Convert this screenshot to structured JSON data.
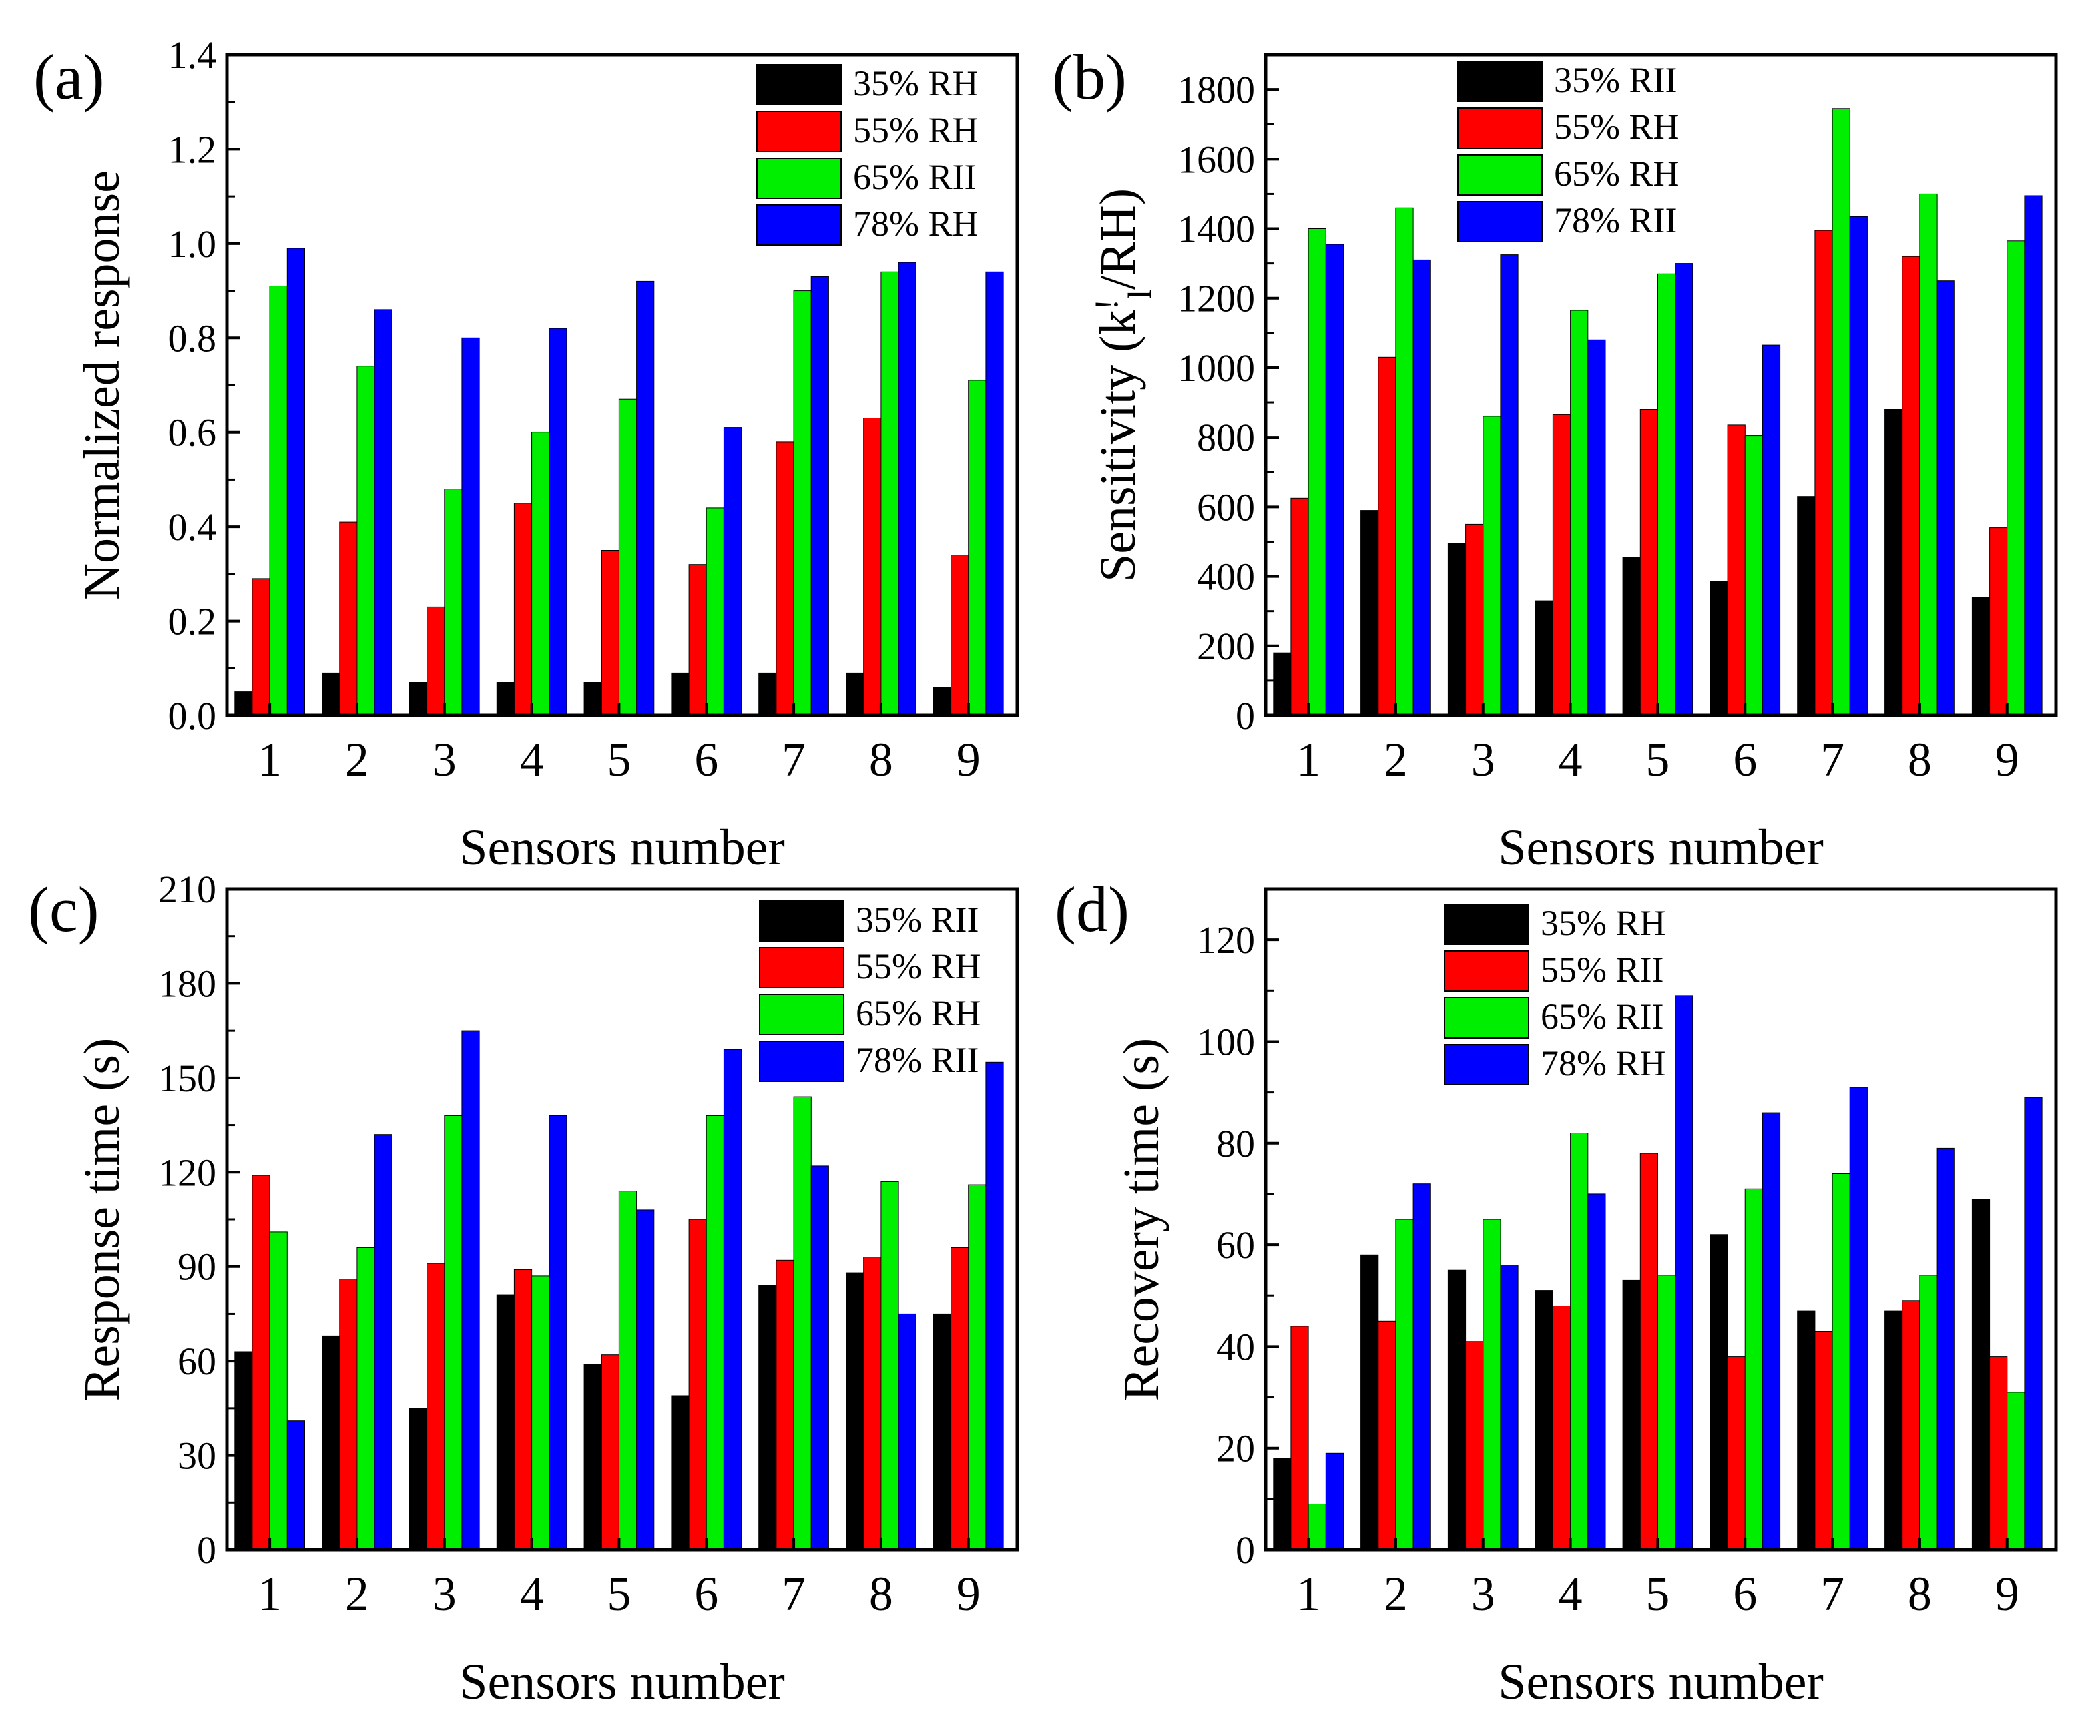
{
  "colors": {
    "s35": "#000000",
    "s55": "#ff0000",
    "s65": "#00ee00",
    "s78": "#0000ff",
    "axis": "#000000"
  },
  "chart_data": [
    {
      "type": "bar",
      "panel_label": "(a)",
      "xlabel": "Sensors number",
      "ylabel": "Normalized response",
      "ylim": [
        0,
        1.4
      ],
      "yticks": [
        "0.0",
        "0.2",
        "0.4",
        "0.6",
        "0.8",
        "1.0",
        "1.2",
        "1.4"
      ],
      "categories": [
        "1",
        "2",
        "3",
        "4",
        "5",
        "6",
        "7",
        "8",
        "9"
      ],
      "legend_position": "top-right",
      "series": [
        {
          "name": "35% RH",
          "values": [
            0.05,
            0.09,
            0.07,
            0.07,
            0.07,
            0.09,
            0.09,
            0.09,
            0.06
          ]
        },
        {
          "name": "55% RH",
          "values": [
            0.29,
            0.41,
            0.23,
            0.45,
            0.35,
            0.32,
            0.58,
            0.63,
            0.34
          ]
        },
        {
          "name": "65% RII",
          "values": [
            0.91,
            0.74,
            0.48,
            0.6,
            0.67,
            0.44,
            0.9,
            0.94,
            0.71
          ]
        },
        {
          "name": "78% RH",
          "values": [
            0.99,
            0.86,
            0.8,
            0.82,
            0.92,
            0.61,
            0.93,
            0.96,
            0.94
          ]
        }
      ]
    },
    {
      "type": "bar",
      "panel_label": "(b)",
      "xlabel": "Sensors number",
      "ylabel": "Sensitivity (k",
      "ylabel_sup": "!",
      "ylabel_sub": "l",
      "ylabel_tail": "/RH)",
      "ylim": [
        0,
        1900
      ],
      "yticks": [
        "0",
        "200",
        "400",
        "600",
        "800",
        "1000",
        "1200",
        "1400",
        "1600",
        "1800"
      ],
      "categories": [
        "1",
        "2",
        "3",
        "4",
        "5",
        "6",
        "7",
        "8",
        "9"
      ],
      "legend_position": "top-center",
      "series": [
        {
          "name": "35% RII",
          "values": [
            180,
            590,
            495,
            330,
            455,
            385,
            630,
            880,
            340
          ]
        },
        {
          "name": "55% RH",
          "values": [
            625,
            1030,
            550,
            865,
            880,
            835,
            1395,
            1320,
            540
          ]
        },
        {
          "name": "65% RH",
          "values": [
            1400,
            1460,
            860,
            1165,
            1270,
            805,
            1745,
            1500,
            1365
          ]
        },
        {
          "name": "78% RII",
          "values": [
            1355,
            1310,
            1325,
            1080,
            1300,
            1065,
            1435,
            1250,
            1495
          ]
        }
      ]
    },
    {
      "type": "bar",
      "panel_label": "(c)",
      "xlabel": "Sensors number",
      "ylabel": "Response time (s)",
      "ylim": [
        0,
        210
      ],
      "yticks": [
        "0",
        "30",
        "60",
        "90",
        "120",
        "150",
        "180",
        "210"
      ],
      "categories": [
        "1",
        "2",
        "3",
        "4",
        "5",
        "6",
        "7",
        "8",
        "9"
      ],
      "legend_position": "top-right",
      "series": [
        {
          "name": "35% RII",
          "values": [
            63,
            68,
            45,
            81,
            59,
            49,
            84,
            88,
            75
          ]
        },
        {
          "name": "55% RH",
          "values": [
            119,
            86,
            91,
            89,
            62,
            105,
            92,
            93,
            96
          ]
        },
        {
          "name": "65% RH",
          "values": [
            101,
            96,
            138,
            87,
            114,
            138,
            144,
            117,
            116
          ]
        },
        {
          "name": "78% RII",
          "values": [
            41,
            132,
            165,
            138,
            108,
            159,
            122,
            75,
            155
          ]
        }
      ]
    },
    {
      "type": "bar",
      "panel_label": "(d)",
      "xlabel": "Sensors number",
      "ylabel": "Recovery time (s)",
      "ylim": [
        0,
        130
      ],
      "yticks": [
        "0",
        "20",
        "40",
        "60",
        "80",
        "100",
        "120"
      ],
      "categories": [
        "1",
        "2",
        "3",
        "4",
        "5",
        "6",
        "7",
        "8",
        "9"
      ],
      "legend_position": "top-center",
      "series": [
        {
          "name": "35% RH",
          "values": [
            18,
            58,
            55,
            51,
            53,
            62,
            47,
            47,
            69
          ]
        },
        {
          "name": "55% RII",
          "values": [
            44,
            45,
            41,
            48,
            78,
            38,
            43,
            49,
            38
          ]
        },
        {
          "name": "65% RII",
          "values": [
            9,
            65,
            65,
            82,
            54,
            71,
            74,
            54,
            31
          ]
        },
        {
          "name": "78% RH",
          "values": [
            19,
            72,
            56,
            70,
            109,
            86,
            91,
            79,
            89
          ]
        }
      ]
    }
  ]
}
